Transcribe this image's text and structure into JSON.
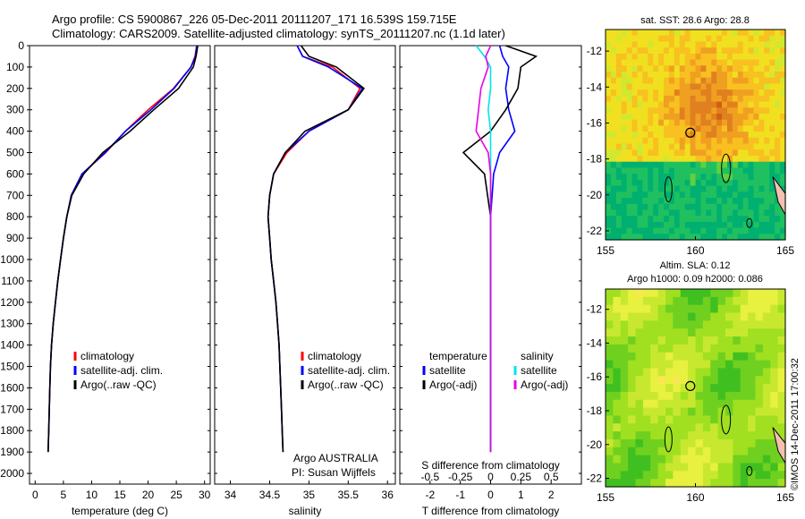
{
  "title": {
    "line1": "Argo profile: CS 5900867_226 05-Dec-2011 20111207_171 16.539S 159.715E",
    "line2": "Climatology: CARS2009. Satellite-adjusted climatology: synTS_20111207.nc (1.1d later)"
  },
  "colors": {
    "clim": "#ff0000",
    "sat": "#0000ff",
    "argo": "#000000",
    "sal_sat": "#00e5e5",
    "sal_argo": "#e800e8"
  },
  "depth_ticks": [
    "0",
    "100",
    "200",
    "300",
    "400",
    "500",
    "600",
    "700",
    "800",
    "900",
    "1000",
    "1100",
    "1200",
    "1300",
    "1400",
    "1500",
    "1600",
    "1700",
    "1800",
    "1900",
    "2000"
  ],
  "panel1": {
    "xlabel": "temperature (deg C)",
    "xticks": [
      "0",
      "5",
      "10",
      "15",
      "20",
      "25",
      "30"
    ],
    "legend": [
      "climatology",
      "satellite-adj. clim.",
      "Argo(..raw -QC)"
    ]
  },
  "panel2": {
    "xlabel": "salinity",
    "xticks": [
      "34",
      "34.5",
      "35",
      "35.5",
      "36"
    ],
    "legend": [
      "climatology",
      "satellite-adj. clim.",
      "Argo(..raw -QC)"
    ],
    "note1": "Argo AUSTRALIA",
    "note2": "PI: Susan Wijffels"
  },
  "panel3": {
    "xlabel": "T difference from climatology",
    "xlabel_top": "S difference from climatology",
    "xticks": [
      "-2",
      "-1",
      "0",
      "1",
      "2"
    ],
    "xticks_s": [
      "-0.5",
      "-0.25",
      "0",
      "0.25",
      "0.5"
    ],
    "legend_t_title": "temperature",
    "legend_t": [
      "satellite",
      "Argo(-adj)"
    ],
    "legend_s_title": "salinity",
    "legend_s": [
      "satellite",
      "Argo(-adj)"
    ]
  },
  "map1": {
    "title": "sat. SST: 28.6  Argo: 28.8",
    "xticks": [
      "155",
      "160",
      "165"
    ],
    "yticks": [
      "-12",
      "-14",
      "-16",
      "-18",
      "-20",
      "-22"
    ]
  },
  "map2": {
    "title1": "Altim. SLA: 0.12",
    "title2": "Argo h1000: 0.09 h2000: 0.086",
    "xticks": [
      "155",
      "160",
      "165"
    ],
    "yticks": [
      "-12",
      "-14",
      "-16",
      "-18",
      "-20",
      "-22"
    ]
  },
  "footer": "©IMOS 14-Dec-2011 17:00:32",
  "chart_data": [
    {
      "type": "line",
      "name": "temperature",
      "xlim": [
        -1,
        31
      ],
      "ylim": [
        2050,
        0
      ],
      "series": [
        {
          "name": "climatology",
          "x": [
            28.6,
            28.3,
            27.6,
            24.5,
            20,
            16,
            12.5,
            8.3,
            6.4,
            5.6,
            5.0,
            4.5,
            4.0,
            3.6,
            3.2,
            2.9,
            2.7,
            2.6,
            2.5,
            2.4,
            2.3
          ],
          "y": [
            0,
            50,
            100,
            200,
            300,
            400,
            500,
            600,
            700,
            800,
            900,
            1000,
            1100,
            1200,
            1300,
            1400,
            1500,
            1600,
            1700,
            1800,
            1900
          ]
        },
        {
          "name": "satellite-adj. clim.",
          "x": [
            28.6,
            28.4,
            27.6,
            24.6,
            20.5,
            16,
            12.4,
            8.3,
            6.4,
            5.6,
            5.0,
            4.5,
            4.0,
            3.6,
            3.2,
            2.9,
            2.7,
            2.6,
            2.5,
            2.4,
            2.3
          ],
          "y": [
            0,
            50,
            100,
            200,
            300,
            400,
            500,
            600,
            700,
            800,
            900,
            1000,
            1100,
            1200,
            1300,
            1400,
            1500,
            1600,
            1700,
            1800,
            1900
          ]
        },
        {
          "name": "Argo(..raw -QC)",
          "x": [
            28.8,
            28.5,
            28.0,
            25.4,
            21,
            16.8,
            12,
            8.6,
            6.5,
            5.6,
            5.0,
            4.5,
            4.0,
            3.6,
            3.2,
            2.9,
            2.7,
            2.6,
            2.5,
            2.4,
            2.3
          ],
          "y": [
            0,
            50,
            100,
            200,
            300,
            400,
            500,
            600,
            700,
            800,
            900,
            1000,
            1100,
            1200,
            1300,
            1400,
            1500,
            1600,
            1700,
            1800,
            1900
          ]
        }
      ]
    },
    {
      "type": "line",
      "name": "salinity",
      "xlim": [
        33.8,
        36.1
      ],
      "ylim": [
        2050,
        0
      ],
      "series": [
        {
          "name": "climatology",
          "x": [
            34.85,
            34.92,
            35.3,
            35.65,
            35.5,
            35.0,
            34.72,
            34.55,
            34.5,
            34.48,
            34.5,
            34.52,
            34.55,
            34.58,
            34.6,
            34.62,
            34.63,
            34.64,
            34.65,
            34.66,
            34.67
          ],
          "y": [
            0,
            50,
            100,
            200,
            300,
            400,
            500,
            600,
            700,
            800,
            900,
            1000,
            1100,
            1200,
            1300,
            1400,
            1500,
            1600,
            1700,
            1800,
            1900
          ]
        },
        {
          "name": "satellite-adj. clim.",
          "x": [
            34.85,
            34.92,
            35.25,
            35.68,
            35.5,
            35.0,
            34.7,
            34.55,
            34.5,
            34.48,
            34.5,
            34.52,
            34.55,
            34.58,
            34.6,
            34.62,
            34.63,
            34.64,
            34.65,
            34.66,
            34.67
          ],
          "y": [
            0,
            50,
            100,
            200,
            300,
            400,
            500,
            600,
            700,
            800,
            900,
            1000,
            1100,
            1200,
            1300,
            1400,
            1500,
            1600,
            1700,
            1800,
            1900
          ]
        },
        {
          "name": "Argo(..raw -QC)",
          "x": [
            34.9,
            35.0,
            35.35,
            35.7,
            35.5,
            34.95,
            34.7,
            34.55,
            34.5,
            34.48,
            34.5,
            34.52,
            34.55,
            34.58,
            34.6,
            34.62,
            34.63,
            34.64,
            34.65,
            34.66,
            34.67
          ],
          "y": [
            0,
            50,
            100,
            200,
            300,
            400,
            500,
            600,
            700,
            800,
            900,
            1000,
            1100,
            1200,
            1300,
            1400,
            1500,
            1600,
            1700,
            1800,
            1900
          ]
        }
      ]
    },
    {
      "type": "line",
      "name": "difference from climatology",
      "xlim": [
        -3,
        3
      ],
      "ylim": [
        2050,
        0
      ],
      "series": [
        {
          "name": "temperature satellite",
          "x": [
            0.3,
            0.4,
            0.6,
            0.5,
            0.6,
            0.8,
            0.3,
            0.1,
            0.05,
            0,
            0,
            0,
            0,
            0,
            0,
            0,
            0,
            0,
            0,
            0,
            0
          ],
          "y": [
            0,
            50,
            100,
            200,
            300,
            400,
            500,
            600,
            700,
            800,
            900,
            1000,
            1100,
            1200,
            1300,
            1400,
            1500,
            1600,
            1700,
            1800,
            1900
          ]
        },
        {
          "name": "temperature Argo(-adj)",
          "x": [
            0.5,
            1.5,
            1.0,
            0.9,
            0.5,
            0.0,
            -0.9,
            -0.2,
            -0.1,
            0.0,
            0,
            0,
            0,
            0,
            0,
            0,
            0,
            0,
            0,
            0,
            0
          ],
          "y": [
            0,
            50,
            100,
            200,
            300,
            400,
            500,
            600,
            700,
            800,
            900,
            1000,
            1100,
            1200,
            1300,
            1400,
            1500,
            1600,
            1700,
            1800,
            1900
          ]
        },
        {
          "name": "salinity satellite",
          "x": [
            -0.12,
            -0.05,
            0.0,
            0.0,
            -0.02,
            0.0,
            0.0,
            0,
            0,
            0,
            0,
            0,
            0,
            0,
            0,
            0,
            0,
            0,
            0,
            0,
            0
          ],
          "y": [
            0,
            50,
            100,
            200,
            300,
            400,
            500,
            600,
            700,
            800,
            900,
            1000,
            1100,
            1200,
            1300,
            1400,
            1500,
            1600,
            1700,
            1800,
            1900
          ]
        },
        {
          "name": "salinity Argo(-adj)",
          "x": [
            0.0,
            -0.04,
            -0.02,
            -0.08,
            -0.1,
            -0.12,
            -0.02,
            0,
            0,
            0,
            0,
            0,
            0,
            0,
            0,
            0,
            0,
            0,
            0,
            0,
            0
          ],
          "y": [
            0,
            50,
            100,
            200,
            300,
            400,
            500,
            600,
            700,
            800,
            900,
            1000,
            1100,
            1200,
            1300,
            1400,
            1500,
            1600,
            1700,
            1800,
            1900
          ]
        }
      ]
    },
    {
      "type": "heatmap",
      "name": "sat. SST",
      "xlim": [
        155,
        165
      ],
      "ylim": [
        -22.5,
        -10.8
      ],
      "marker": {
        "lon": 159.715,
        "lat": -16.539
      }
    },
    {
      "type": "heatmap",
      "name": "Altim. SLA",
      "xlim": [
        155,
        165
      ],
      "ylim": [
        -22.5,
        -10.8
      ],
      "marker": {
        "lon": 159.715,
        "lat": -16.539
      }
    }
  ]
}
